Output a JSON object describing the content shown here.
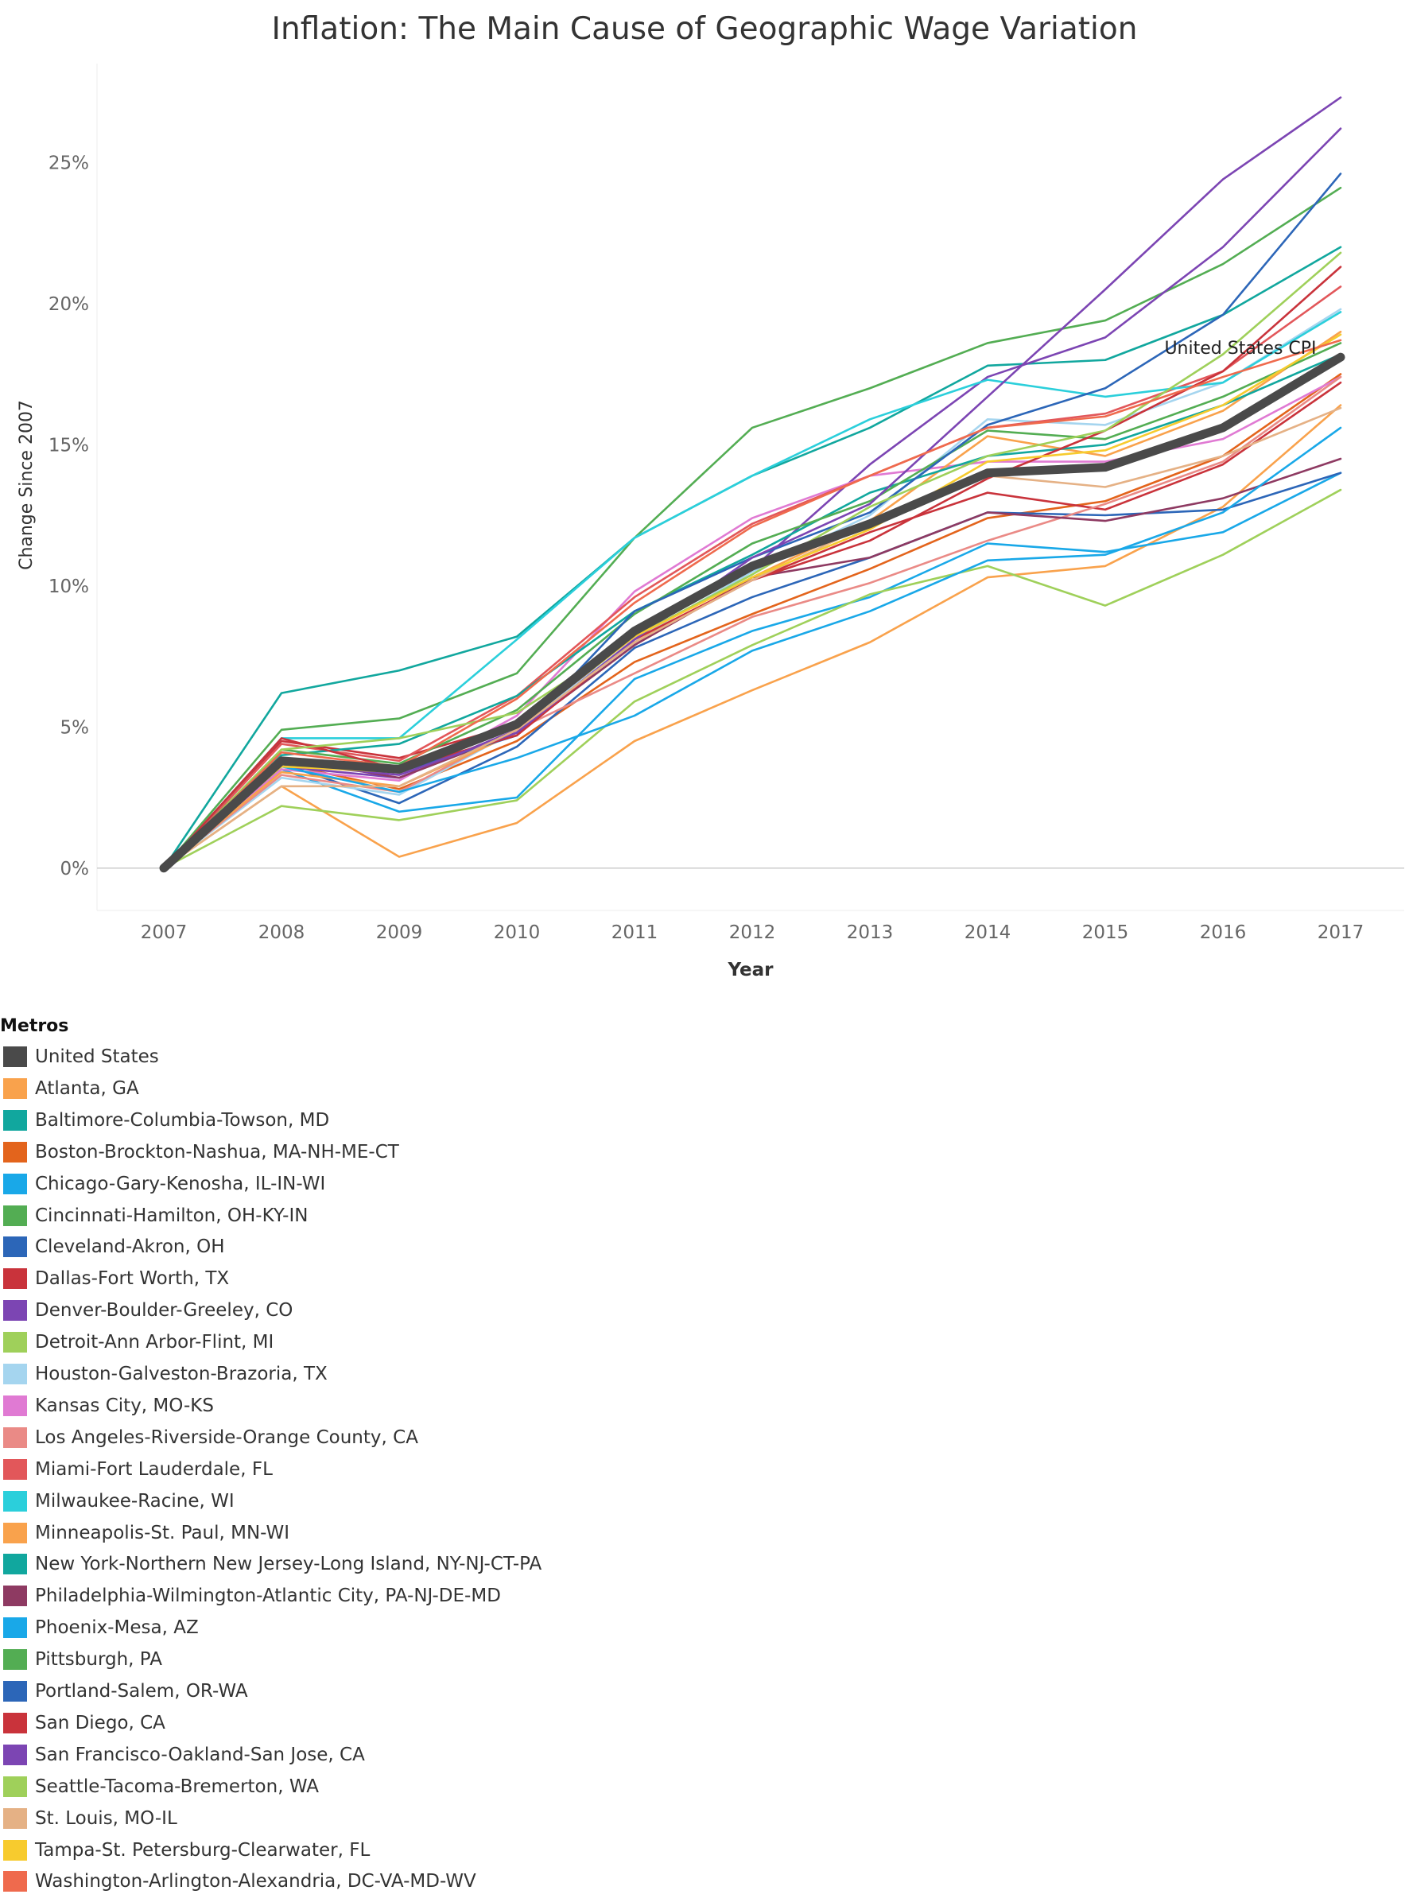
{
  "chart_data": {
    "type": "line",
    "title": "Inflation: The Main Cause of Geographic Wage Variation",
    "xlabel": "Year",
    "ylabel": "Change Since 2007",
    "x": [
      "2007",
      "2008",
      "2009",
      "2010",
      "2011",
      "2012",
      "2013",
      "2014",
      "2015",
      "2016",
      "2017"
    ],
    "ylim": [
      -1.5,
      28.5
    ],
    "yticks": [
      0,
      5,
      10,
      15,
      20,
      25
    ],
    "ytick_labels": [
      "0%",
      "5%",
      "10%",
      "15%",
      "20%",
      "25%"
    ],
    "grid": false,
    "annotation": "United States CPI",
    "legend_title": "Metros",
    "legend_placement": "bottom",
    "series": [
      {
        "name": "United States",
        "color": "#4a4a4a",
        "values": [
          0,
          3.8,
          3.5,
          5.1,
          8.4,
          10.7,
          12.2,
          14.0,
          14.2,
          15.6,
          18.1
        ]
      },
      {
        "name": "Atlanta, GA",
        "color": "#f9a24c",
        "values": [
          0,
          2.9,
          0.4,
          1.6,
          4.5,
          6.3,
          8.0,
          10.3,
          10.7,
          12.8,
          16.4
        ]
      },
      {
        "name": "Baltimore-Columbia-Towson, MD",
        "color": "#11a79e",
        "values": [
          0,
          6.2,
          7.0,
          8.2,
          11.7,
          13.9,
          15.6,
          17.8,
          18.0,
          19.6,
          22.0
        ]
      },
      {
        "name": "Boston-Brockton-Nashua, MA-NH-ME-CT",
        "color": "#e3641c",
        "values": [
          0,
          3.7,
          2.8,
          4.5,
          7.3,
          9.0,
          10.6,
          12.4,
          13.0,
          14.6,
          17.5
        ]
      },
      {
        "name": "Chicago-Gary-Kenosha, IL-IN-WI",
        "color": "#19a8e8",
        "values": [
          0,
          3.5,
          2.0,
          2.5,
          6.7,
          8.4,
          9.6,
          11.5,
          11.2,
          11.9,
          14.0
        ]
      },
      {
        "name": "Cincinnati-Hamilton, OH-KY-IN",
        "color": "#53ad53",
        "values": [
          0,
          4.9,
          5.3,
          6.9,
          11.7,
          15.6,
          17.0,
          18.6,
          19.4,
          21.4,
          24.1
        ]
      },
      {
        "name": "Cleveland-Akron, OH",
        "color": "#2c66b8",
        "values": [
          0,
          3.7,
          2.3,
          4.3,
          7.8,
          9.6,
          11.0,
          12.6,
          12.5,
          12.7,
          14.0
        ]
      },
      {
        "name": "Dallas-Fort Worth, TX",
        "color": "#c9333b",
        "values": [
          0,
          4.5,
          3.9,
          5.1,
          8.0,
          10.2,
          11.9,
          13.3,
          12.7,
          14.3,
          17.2
        ]
      },
      {
        "name": "Denver-Boulder-Greeley, CO",
        "color": "#7c45b3",
        "values": [
          0,
          3.6,
          3.2,
          4.9,
          8.3,
          10.6,
          14.3,
          17.4,
          18.8,
          22.0,
          26.2
        ]
      },
      {
        "name": "Detroit-Ann Arbor-Flint, MI",
        "color": "#9fd05a",
        "values": [
          0,
          2.2,
          1.7,
          2.4,
          5.9,
          7.9,
          9.7,
          10.7,
          9.3,
          11.1,
          13.4
        ]
      },
      {
        "name": "Houston-Galveston-Brazoria, TX",
        "color": "#a5d5ef",
        "values": [
          0,
          3.2,
          2.6,
          4.9,
          8.1,
          10.5,
          12.5,
          15.9,
          15.7,
          17.2,
          19.8
        ]
      },
      {
        "name": "Kansas City, MO-KS",
        "color": "#e07ad3",
        "values": [
          0,
          3.5,
          3.1,
          5.4,
          9.8,
          12.4,
          13.9,
          14.4,
          14.4,
          15.2,
          17.4
        ]
      },
      {
        "name": "Los Angeles-Riverside-Orange County, CA",
        "color": "#ea8a86",
        "values": [
          0,
          3.3,
          2.7,
          4.9,
          6.9,
          8.9,
          10.1,
          11.6,
          12.9,
          14.4,
          17.4
        ]
      },
      {
        "name": "Miami-Fort Lauderdale, FL",
        "color": "#e2575a",
        "values": [
          0,
          4.4,
          3.8,
          6.1,
          9.6,
          12.2,
          13.9,
          15.6,
          16.1,
          17.6,
          20.6
        ]
      },
      {
        "name": "Milwaukee-Racine, WI",
        "color": "#2bcfdb",
        "values": [
          0,
          4.6,
          4.6,
          8.1,
          11.7,
          13.9,
          15.9,
          17.3,
          16.7,
          17.2,
          19.7
        ]
      },
      {
        "name": "Minneapolis-St. Paul, MN-WI",
        "color": "#f9a24c",
        "values": [
          0,
          3.4,
          2.9,
          4.8,
          7.9,
          10.3,
          12.3,
          15.3,
          14.6,
          16.2,
          19.0
        ]
      },
      {
        "name": "New York-Northern New Jersey-Long Island, NY-NJ-CT-PA",
        "color": "#11a79e",
        "values": [
          0,
          4.0,
          4.4,
          6.1,
          9.1,
          11.1,
          13.3,
          14.6,
          15.0,
          16.4,
          18.2
        ]
      },
      {
        "name": "Philadelphia-Wilmington-Atlantic City, PA-NJ-DE-MD",
        "color": "#8e3a62",
        "values": [
          0,
          3.9,
          3.2,
          4.8,
          7.9,
          10.3,
          11.0,
          12.6,
          12.3,
          13.1,
          14.5
        ]
      },
      {
        "name": "Phoenix-Mesa, AZ",
        "color": "#19a8e8",
        "values": [
          0,
          3.6,
          2.7,
          3.9,
          5.4,
          7.7,
          9.1,
          10.9,
          11.1,
          12.6,
          15.6
        ]
      },
      {
        "name": "Pittsburgh, PA",
        "color": "#53ad53",
        "values": [
          0,
          4.2,
          3.7,
          5.6,
          9.0,
          11.5,
          13.0,
          15.5,
          15.2,
          16.7,
          18.6
        ]
      },
      {
        "name": "Portland-Salem, OR-WA",
        "color": "#2c66b8",
        "values": [
          0,
          3.9,
          3.4,
          4.7,
          9.1,
          11.0,
          12.6,
          15.7,
          17.0,
          19.6,
          24.6
        ]
      },
      {
        "name": "San Diego, CA",
        "color": "#c9333b",
        "values": [
          0,
          4.6,
          3.5,
          4.7,
          8.1,
          10.2,
          11.6,
          13.8,
          15.5,
          17.6,
          21.3
        ]
      },
      {
        "name": "San Francisco-Oakland-San Jose, CA",
        "color": "#7c45b3",
        "values": [
          0,
          3.7,
          3.3,
          4.8,
          8.1,
          11.0,
          12.9,
          16.7,
          20.5,
          24.4,
          27.3
        ]
      },
      {
        "name": "Seattle-Tacoma-Bremerton, WA",
        "color": "#9fd05a",
        "values": [
          0,
          4.2,
          4.6,
          5.5,
          8.2,
          10.4,
          12.8,
          14.6,
          15.5,
          18.2,
          21.8
        ]
      },
      {
        "name": "St. Louis, MO-IL",
        "color": "#e5b185",
        "values": [
          0,
          2.9,
          2.9,
          4.9,
          8.0,
          10.2,
          12.2,
          13.9,
          13.5,
          14.6,
          16.3
        ]
      },
      {
        "name": "Tampa-St. Petersburg-Clearwater, FL",
        "color": "#f7cb2e",
        "values": [
          0,
          3.6,
          3.4,
          5.0,
          8.2,
          10.3,
          12.0,
          14.4,
          14.8,
          16.4,
          18.9
        ]
      },
      {
        "name": "Washington-Arlington-Alexandria, DC-VA-MD-WV",
        "color": "#ef6a4d",
        "values": [
          0,
          4.1,
          3.6,
          6.0,
          9.4,
          12.1,
          13.9,
          15.6,
          16.0,
          17.4,
          18.7
        ]
      }
    ]
  }
}
